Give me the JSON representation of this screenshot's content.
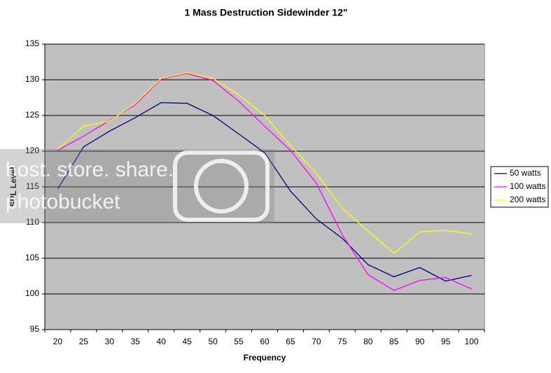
{
  "chart_data": {
    "type": "line",
    "title": "1 Mass Destruction Sidewinder 12\"",
    "xlabel": "Frequency",
    "ylabel": "SPL Level",
    "categories": [
      "20",
      "25",
      "30",
      "35",
      "40",
      "45",
      "50",
      "55",
      "60",
      "65",
      "70",
      "75",
      "80",
      "85",
      "90",
      "95",
      "100"
    ],
    "series": [
      {
        "name": "50 watts",
        "color": "#000080",
        "values": [
          114.7,
          120.6,
          122.8,
          124.7,
          126.8,
          126.7,
          125,
          122.4,
          119.8,
          114.4,
          110.5,
          107.8,
          104.1,
          102.4,
          103.7,
          101.8,
          102.6
        ]
      },
      {
        "name": "100 watts",
        "color": "#ff00ff",
        "values": [
          120.1,
          122.1,
          124.3,
          126.5,
          130.1,
          130.9,
          129.9,
          127,
          123.5,
          120.1,
          115.5,
          108.3,
          102.7,
          100.5,
          101.9,
          102.3,
          100.7
        ]
      },
      {
        "name": "200 watts",
        "color": "#ffff00",
        "values": [
          120.3,
          123.5,
          124.2,
          126.7,
          130.2,
          131,
          130.2,
          127.9,
          125,
          120.8,
          116.9,
          112,
          108.8,
          105.7,
          108.7,
          108.9,
          108.4
        ]
      }
    ],
    "ylim": [
      95,
      135
    ],
    "yticks": [
      95,
      100,
      105,
      110,
      115,
      120,
      125,
      130,
      135
    ],
    "grid": true,
    "legend": "right",
    "watermark": [
      "host. store. share.",
      "photobucket"
    ]
  }
}
